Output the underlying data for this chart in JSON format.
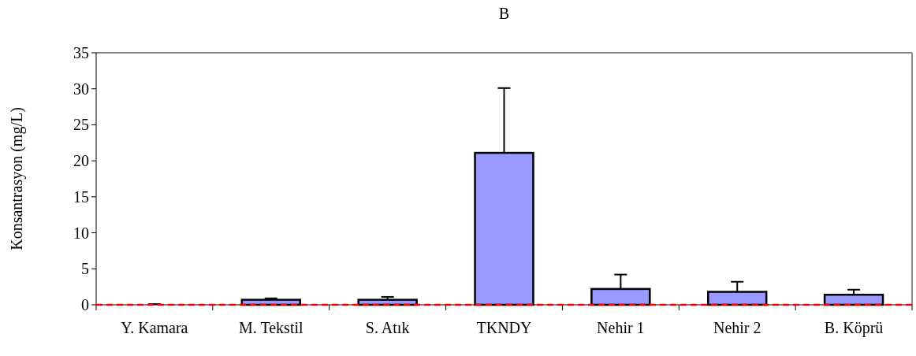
{
  "chart_data": {
    "type": "bar",
    "title": "B",
    "ylabel": "Konsantrasyon (mg/L)",
    "categories": [
      "Y. Kamara",
      "M. Tekstil",
      "S. Atık",
      "TKNDY",
      "Nehir 1",
      "Nehir 2",
      "B. Köprü"
    ],
    "values": [
      0,
      0.7,
      0.7,
      21.1,
      2.2,
      1.8,
      1.4
    ],
    "errors": [
      0.1,
      0.2,
      0.4,
      9,
      2,
      1.4,
      0.7
    ],
    "color": "#9999ff",
    "ylim": [
      0,
      35
    ],
    "yticks": [
      0,
      5,
      10,
      15,
      20,
      25,
      30,
      35
    ],
    "grid": false,
    "ref_lines": [
      {
        "axis": "y",
        "value": 0,
        "color": "#ff0000",
        "line_style": "dashed"
      }
    ]
  }
}
